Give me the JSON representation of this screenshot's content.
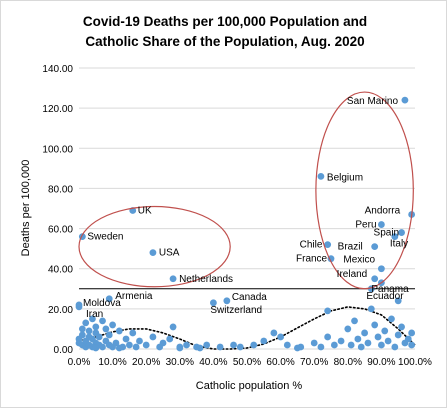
{
  "chart_data": {
    "type": "scatter",
    "title_lines": [
      "Covid-19 Deaths per 100,000 Population and",
      "Catholic Share of the Population, Aug. 2020"
    ],
    "xlabel": "Catholic population %",
    "ylabel": "Deaths per 100,000",
    "xlim": [
      0,
      1
    ],
    "ylim": [
      0,
      140
    ],
    "x_ticks": [
      0,
      0.1,
      0.2,
      0.3,
      0.4,
      0.5,
      0.6,
      0.7,
      0.8,
      0.9,
      1.0
    ],
    "x_tick_labels": [
      "0.0%",
      "10.0%",
      "20.0%",
      "30.0%",
      "40.0%",
      "50.0%",
      "60.0%",
      "70.0%",
      "80.0%",
      "90.0%",
      "100.0%"
    ],
    "y_ticks": [
      0,
      20,
      40,
      60,
      80,
      100,
      120,
      140
    ],
    "y_tick_labels": [
      "0.00",
      "20.00",
      "40.00",
      "60.00",
      "80.00",
      "100.00",
      "120.00",
      "140.00"
    ],
    "grid": "horizontal",
    "marker_color": "#5b9bd5",
    "highlight_color": "#c0504d",
    "reference_line_y": 30,
    "labeled_points": [
      {
        "label": "San Marino",
        "x": 0.97,
        "y": 124
      },
      {
        "label": "Belgium",
        "x": 0.72,
        "y": 86
      },
      {
        "label": "UK",
        "x": 0.16,
        "y": 69
      },
      {
        "label": "Andorra",
        "x": 0.99,
        "y": 67
      },
      {
        "label": "Peru",
        "x": 0.9,
        "y": 62
      },
      {
        "label": "Spain",
        "x": 0.96,
        "y": 58
      },
      {
        "label": "Sweden",
        "x": 0.01,
        "y": 56
      },
      {
        "label": "Italy",
        "x": 0.94,
        "y": 56
      },
      {
        "label": "Chile",
        "x": 0.74,
        "y": 52
      },
      {
        "label": "Brazil",
        "x": 0.88,
        "y": 51
      },
      {
        "label": "USA",
        "x": 0.22,
        "y": 48
      },
      {
        "label": "France",
        "x": 0.75,
        "y": 45
      },
      {
        "label": "Mexico",
        "x": 0.9,
        "y": 40
      },
      {
        "label": "Ireland",
        "x": 0.88,
        "y": 35
      },
      {
        "label": "Netherlands",
        "x": 0.28,
        "y": 35
      },
      {
        "label": "Panama",
        "x": 0.9,
        "y": 33
      },
      {
        "label": "Ecuador",
        "x": 0.87,
        "y": 30
      },
      {
        "label": "Armenia",
        "x": 0.09,
        "y": 25
      },
      {
        "label": "Canada",
        "x": 0.44,
        "y": 24
      },
      {
        "label": "Switzerland",
        "x": 0.4,
        "y": 23
      },
      {
        "label": "Moldova",
        "x": 0.0,
        "y": 22
      },
      {
        "label": "Iran",
        "x": 0.0,
        "y": 21
      }
    ],
    "other_points": [
      [
        0.0,
        5
      ],
      [
        0.0,
        3
      ],
      [
        0.01,
        10
      ],
      [
        0.01,
        2
      ],
      [
        0.01,
        7
      ],
      [
        0.02,
        1
      ],
      [
        0.02,
        4
      ],
      [
        0.02,
        13
      ],
      [
        0.03,
        6
      ],
      [
        0.03,
        9
      ],
      [
        0.03,
        2
      ],
      [
        0.04,
        1
      ],
      [
        0.04,
        5
      ],
      [
        0.04,
        15
      ],
      [
        0.05,
        3
      ],
      [
        0.05,
        8
      ],
      [
        0.05,
        11
      ],
      [
        0.06,
        2
      ],
      [
        0.06,
        6
      ],
      [
        0.07,
        14
      ],
      [
        0.07,
        1
      ],
      [
        0.08,
        4
      ],
      [
        0.08,
        10
      ],
      [
        0.09,
        2
      ],
      [
        0.09,
        7
      ],
      [
        0.1,
        12
      ],
      [
        0.1,
        1
      ],
      [
        0.11,
        3
      ],
      [
        0.12,
        9
      ],
      [
        0.13,
        1
      ],
      [
        0.14,
        5
      ],
      [
        0.15,
        2
      ],
      [
        0.16,
        8
      ],
      [
        0.17,
        1
      ],
      [
        0.18,
        4
      ],
      [
        0.2,
        2
      ],
      [
        0.22,
        6
      ],
      [
        0.24,
        1
      ],
      [
        0.25,
        3
      ],
      [
        0.27,
        5
      ],
      [
        0.28,
        11
      ],
      [
        0.3,
        1
      ],
      [
        0.32,
        2
      ],
      [
        0.35,
        1
      ],
      [
        0.38,
        2
      ],
      [
        0.42,
        1
      ],
      [
        0.46,
        2
      ],
      [
        0.48,
        1
      ],
      [
        0.52,
        2
      ],
      [
        0.55,
        4
      ],
      [
        0.58,
        8
      ],
      [
        0.6,
        6
      ],
      [
        0.62,
        2
      ],
      [
        0.66,
        1
      ],
      [
        0.7,
        3
      ],
      [
        0.72,
        1
      ],
      [
        0.74,
        6
      ],
      [
        0.76,
        2
      ],
      [
        0.78,
        4
      ],
      [
        0.8,
        10
      ],
      [
        0.81,
        2
      ],
      [
        0.82,
        14
      ],
      [
        0.83,
        5
      ],
      [
        0.84,
        1
      ],
      [
        0.85,
        8
      ],
      [
        0.86,
        3
      ],
      [
        0.87,
        20
      ],
      [
        0.88,
        12
      ],
      [
        0.89,
        6
      ],
      [
        0.9,
        2
      ],
      [
        0.91,
        9
      ],
      [
        0.92,
        4
      ],
      [
        0.93,
        15
      ],
      [
        0.94,
        1
      ],
      [
        0.95,
        7
      ],
      [
        0.95,
        24
      ],
      [
        0.96,
        11
      ],
      [
        0.97,
        3
      ],
      [
        0.98,
        5
      ],
      [
        0.99,
        2
      ],
      [
        0.99,
        8
      ],
      [
        0.74,
        19
      ],
      [
        0.3,
        0.5
      ],
      [
        0.36,
        0.5
      ],
      [
        0.05,
        0.5
      ],
      [
        0.12,
        0.5
      ],
      [
        0.65,
        0.5
      ]
    ],
    "trend_points": [
      [
        0.0,
        4
      ],
      [
        0.05,
        6
      ],
      [
        0.1,
        8.5
      ],
      [
        0.15,
        10
      ],
      [
        0.2,
        10
      ],
      [
        0.25,
        8
      ],
      [
        0.3,
        5
      ],
      [
        0.35,
        1.5
      ],
      [
        0.4,
        0
      ],
      [
        0.45,
        -0.5
      ],
      [
        0.5,
        0.5
      ],
      [
        0.55,
        2.5
      ],
      [
        0.6,
        6
      ],
      [
        0.65,
        10.5
      ],
      [
        0.7,
        15
      ],
      [
        0.75,
        19
      ],
      [
        0.8,
        21
      ],
      [
        0.85,
        20
      ],
      [
        0.9,
        17
      ],
      [
        0.95,
        10
      ],
      [
        1.0,
        2
      ]
    ],
    "highlight_ellipses": [
      {
        "cx": 0.225,
        "cy": 51,
        "rx": 0.225,
        "ry": 20
      },
      {
        "cx": 0.85,
        "cy": 79,
        "rx": 0.145,
        "ry": 49
      }
    ]
  }
}
